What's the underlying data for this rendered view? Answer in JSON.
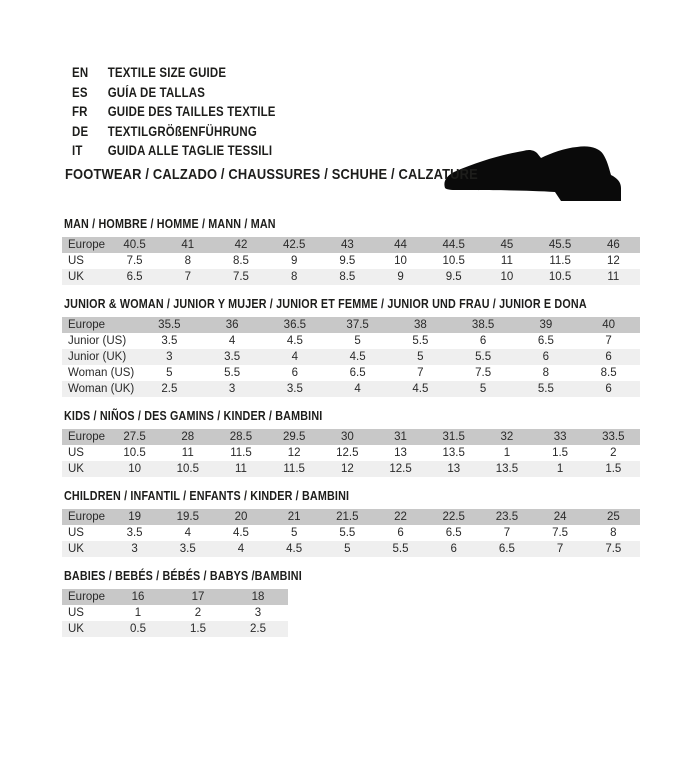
{
  "page": {
    "languages": [
      {
        "code": "EN",
        "text": "TEXTILE SIZE GUIDE"
      },
      {
        "code": "ES",
        "text": "GUÍA DE TALLAS"
      },
      {
        "code": "FR",
        "text": "GUIDE DES TAILLES TEXTILE"
      },
      {
        "code": "DE",
        "text": "TEXTILGRÖßENFÜHRUNG"
      },
      {
        "code": "IT",
        "text": "GUIDA ALLE TAGLIE TESSILI"
      }
    ],
    "category_title": "FOOTWEAR / CALZADO / CHAUSSURES / SCHUHE / CALZATURE",
    "shoe_icon": "dress-shoe-silhouette"
  },
  "colors": {
    "header_row_bg": "#c8c8c8",
    "alt_row_bg": "#efefef",
    "shoe": "#0a0a0a",
    "text": "#1d1d1b"
  },
  "sections": [
    {
      "title": "MAN / HOMBRE / HOMME / MANN / MAN",
      "rows": [
        {
          "label": "Europe",
          "header": true,
          "values": [
            "40.5",
            "41",
            "42",
            "42.5",
            "43",
            "44",
            "44.5",
            "45",
            "45.5",
            "46"
          ]
        },
        {
          "label": "US",
          "values": [
            "7.5",
            "8",
            "8.5",
            "9",
            "9.5",
            "10",
            "10.5",
            "11",
            "11.5",
            "12"
          ]
        },
        {
          "label": "UK",
          "values": [
            "6.5",
            "7",
            "7.5",
            "8",
            "8.5",
            "9",
            "9.5",
            "10",
            "10.5",
            "11"
          ]
        }
      ]
    },
    {
      "title": "JUNIOR & WOMAN / JUNIOR Y MUJER / JUNIOR ET FEMME / JUNIOR UND FRAU / JUNIOR E DONA",
      "rows": [
        {
          "label": "Europe",
          "header": true,
          "values": [
            "35.5",
            "36",
            "36.5",
            "37.5",
            "38",
            "38.5",
            "39",
            "40"
          ]
        },
        {
          "label": "Junior (US)",
          "values": [
            "3.5",
            "4",
            "4.5",
            "5",
            "5.5",
            "6",
            "6.5",
            "7"
          ]
        },
        {
          "label": "Junior (UK)",
          "values": [
            "3",
            "3.5",
            "4",
            "4.5",
            "5",
            "5.5",
            "6",
            "6"
          ]
        },
        {
          "label": "Woman (US)",
          "values": [
            "5",
            "5.5",
            "6",
            "6.5",
            "7",
            "7.5",
            "8",
            "8.5"
          ]
        },
        {
          "label": "Woman (UK)",
          "values": [
            "2.5",
            "3",
            "3.5",
            "4",
            "4.5",
            "5",
            "5.5",
            "6"
          ]
        }
      ]
    },
    {
      "title": "KIDS / NIÑOS / DES GAMINS / KINDER / BAMBINI",
      "rows": [
        {
          "label": "Europe",
          "header": true,
          "values": [
            "27.5",
            "28",
            "28.5",
            "29.5",
            "30",
            "31",
            "31.5",
            "32",
            "33",
            "33.5"
          ]
        },
        {
          "label": "US",
          "values": [
            "10.5",
            "11",
            "11.5",
            "12",
            "12.5",
            "13",
            "13.5",
            "1",
            "1.5",
            "2"
          ]
        },
        {
          "label": "UK",
          "values": [
            "10",
            "10.5",
            "11",
            "11.5",
            "12",
            "12.5",
            "13",
            "13.5",
            "1",
            "1.5"
          ]
        }
      ]
    },
    {
      "title": "CHILDREN / INFANTIL / ENFANTS / KINDER / BAMBINI",
      "rows": [
        {
          "label": "Europe",
          "header": true,
          "values": [
            "19",
            "19.5",
            "20",
            "21",
            "21.5",
            "22",
            "22.5",
            "23.5",
            "24",
            "25"
          ]
        },
        {
          "label": "US",
          "values": [
            "3.5",
            "4",
            "4.5",
            "5",
            "5.5",
            "6",
            "6.5",
            "7",
            "7.5",
            "8"
          ]
        },
        {
          "label": "UK",
          "values": [
            "3",
            "3.5",
            "4",
            "4.5",
            "5",
            "5.5",
            "6",
            "6.5",
            "7",
            "7.5"
          ]
        }
      ]
    },
    {
      "title": "BABIES / BEBÉS / BÉBÉS / BABYS /BAMBINI",
      "rows": [
        {
          "label": "Europe",
          "header": true,
          "values": [
            "16",
            "17",
            "18"
          ]
        },
        {
          "label": "US",
          "values": [
            "1",
            "2",
            "3"
          ]
        },
        {
          "label": "UK",
          "values": [
            "0.5",
            "1.5",
            "2.5"
          ]
        }
      ]
    }
  ]
}
